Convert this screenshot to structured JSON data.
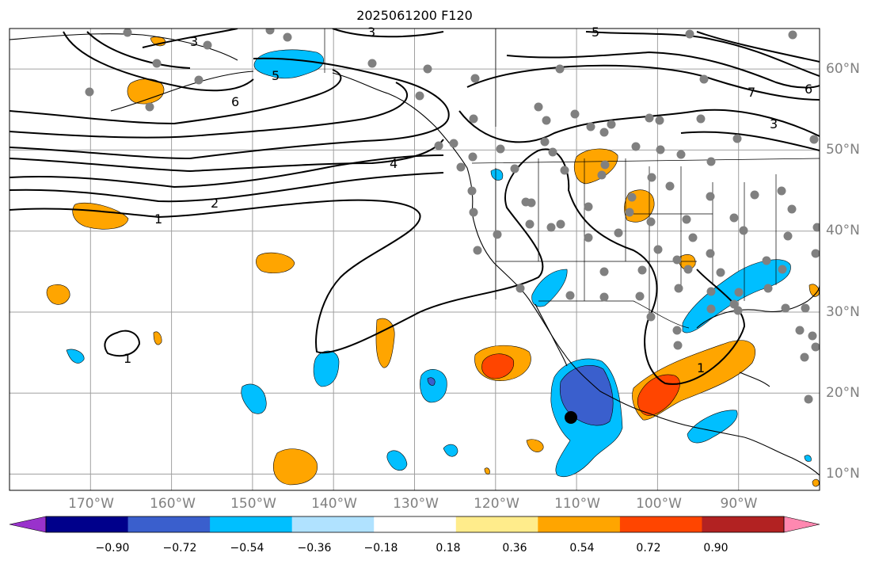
{
  "title": "2025061200 F120",
  "map": {
    "extent_lon": [
      -180,
      -80
    ],
    "extent_lat": [
      8,
      65
    ],
    "grid": true,
    "lon_labels": [
      "170°W",
      "160°W",
      "150°W",
      "140°W",
      "130°W",
      "120°W",
      "110°W",
      "100°W",
      "90°W"
    ],
    "lat_labels": [
      "10°N",
      "20°N",
      "30°N",
      "40°N",
      "50°N",
      "60°N"
    ],
    "contour_labels": [
      "3",
      "6",
      "5",
      "5",
      "3",
      "6",
      "7",
      "3",
      "4",
      "2",
      "1",
      "1",
      "1"
    ],
    "station_color": "#808080",
    "contour_color": "#000000"
  },
  "colorbar": {
    "ticks": [
      "−0.90",
      "−0.72",
      "−0.54",
      "−0.36",
      "−0.18",
      "0.18",
      "0.36",
      "0.54",
      "0.72",
      "0.90"
    ],
    "colors": [
      "#9932cc",
      "#00008b",
      "#3a5fcd",
      "#00bfff",
      "#b0e2ff",
      "#ffffff",
      "#ffec8b",
      "#ffa500",
      "#ff4500",
      "#b22222",
      "#ff88b0"
    ],
    "extend": "both"
  }
}
